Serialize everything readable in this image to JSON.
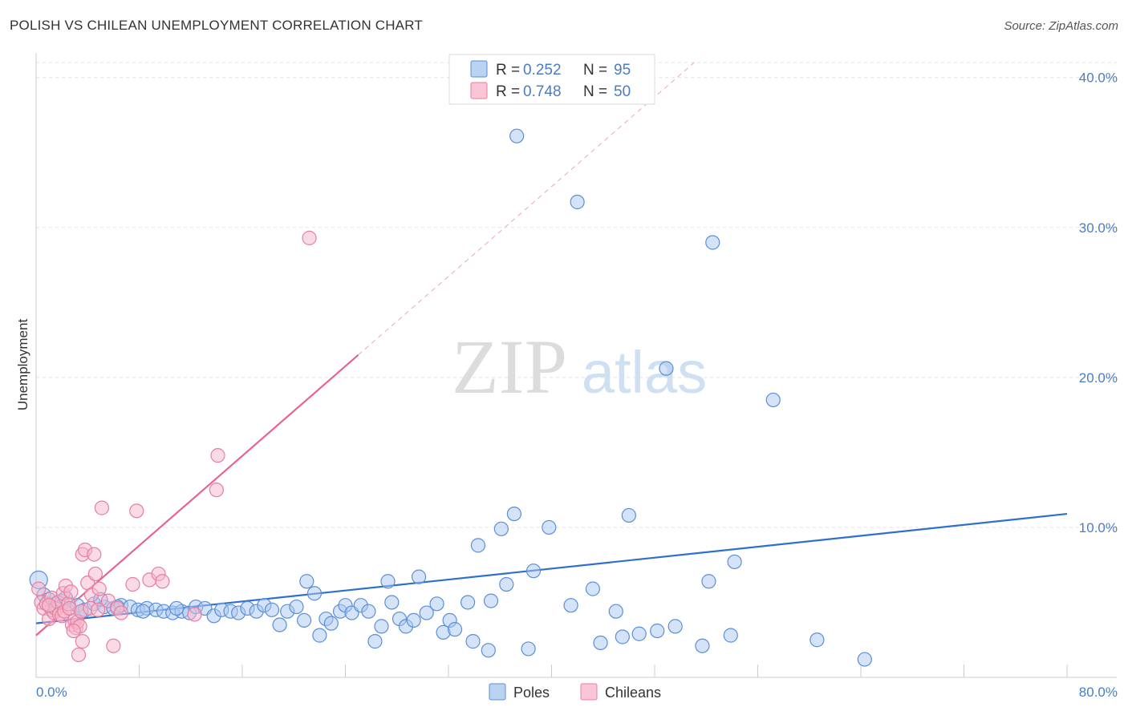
{
  "header": {
    "title": "POLISH VS CHILEAN UNEMPLOYMENT CORRELATION CHART",
    "source": "Source: ZipAtlas.com"
  },
  "watermark": {
    "zip": "ZIP",
    "atlas": "atlas"
  },
  "colors": {
    "poles_fill": "#a9c8f0",
    "poles_stroke": "#5b8fd6",
    "poles_line": "#2f6fce",
    "chileans_fill": "#f6b8cb",
    "chileans_stroke": "#e87ea0",
    "chileans_line": "#e8638f",
    "axis_label": "#4a7cc6",
    "grid": "#e3e3e3"
  },
  "chart_data": {
    "type": "scatter",
    "title": "POLISH VS CHILEAN UNEMPLOYMENT CORRELATION CHART",
    "xlabel": "",
    "ylabel": "Unemployment",
    "xlim": [
      0,
      80
    ],
    "ylim": [
      0,
      41
    ],
    "x_tick_labels": [
      "0.0%",
      "80.0%"
    ],
    "y_ticks": [
      10,
      20,
      30,
      40
    ],
    "y_tick_labels": [
      "10.0%",
      "20.0%",
      "30.0%",
      "40.0%"
    ],
    "legend": {
      "r_label": "R =",
      "n_label": "N =",
      "entries": [
        {
          "name": "Poles",
          "r": "0.252",
          "n": "95"
        },
        {
          "name": "Chileans",
          "r": "0.748",
          "n": "50"
        }
      ]
    },
    "series": [
      {
        "name": "Poles",
        "color": "#a9c8f0",
        "trend": {
          "x": [
            0,
            80
          ],
          "y": [
            3.6,
            10.9
          ]
        },
        "points": [
          [
            0.2,
            6.5
          ],
          [
            0.6,
            5.5
          ],
          [
            1.0,
            5.2
          ],
          [
            1.5,
            4.9
          ],
          [
            2.0,
            5.1
          ],
          [
            2.6,
            4.6
          ],
          [
            3.2,
            4.8
          ],
          [
            3.8,
            4.5
          ],
          [
            4.5,
            4.9
          ],
          [
            5.3,
            4.7
          ],
          [
            6.0,
            4.6
          ],
          [
            6.6,
            4.8
          ],
          [
            7.3,
            4.7
          ],
          [
            7.9,
            4.5
          ],
          [
            8.6,
            4.6
          ],
          [
            9.3,
            4.5
          ],
          [
            9.9,
            4.4
          ],
          [
            10.6,
            4.3
          ],
          [
            11.3,
            4.4
          ],
          [
            11.9,
            4.3
          ],
          [
            12.4,
            4.7
          ],
          [
            13.1,
            4.6
          ],
          [
            13.8,
            4.1
          ],
          [
            14.4,
            4.5
          ],
          [
            15.1,
            4.4
          ],
          [
            15.7,
            4.3
          ],
          [
            16.4,
            4.6
          ],
          [
            17.1,
            4.4
          ],
          [
            17.7,
            4.8
          ],
          [
            18.3,
            4.5
          ],
          [
            18.9,
            3.5
          ],
          [
            19.5,
            4.4
          ],
          [
            20.2,
            4.7
          ],
          [
            20.8,
            3.8
          ],
          [
            21.0,
            6.4
          ],
          [
            21.6,
            5.6
          ],
          [
            22.0,
            2.8
          ],
          [
            22.5,
            3.9
          ],
          [
            22.9,
            3.6
          ],
          [
            23.6,
            4.4
          ],
          [
            24.0,
            4.8
          ],
          [
            24.5,
            4.3
          ],
          [
            25.2,
            4.8
          ],
          [
            25.8,
            4.4
          ],
          [
            26.3,
            2.4
          ],
          [
            26.8,
            3.4
          ],
          [
            27.3,
            6.4
          ],
          [
            27.6,
            5.0
          ],
          [
            28.2,
            3.9
          ],
          [
            28.7,
            3.4
          ],
          [
            29.3,
            3.8
          ],
          [
            29.7,
            6.7
          ],
          [
            30.3,
            4.3
          ],
          [
            31.1,
            4.9
          ],
          [
            31.6,
            3.0
          ],
          [
            32.1,
            3.8
          ],
          [
            32.5,
            3.2
          ],
          [
            33.5,
            5.0
          ],
          [
            33.9,
            2.4
          ],
          [
            34.3,
            8.8
          ],
          [
            35.1,
            1.8
          ],
          [
            35.3,
            5.1
          ],
          [
            36.1,
            9.9
          ],
          [
            36.5,
            6.2
          ],
          [
            37.1,
            10.9
          ],
          [
            37.3,
            36.1
          ],
          [
            38.2,
            1.9
          ],
          [
            38.6,
            7.1
          ],
          [
            39.8,
            10.0
          ],
          [
            41.5,
            4.8
          ],
          [
            42.0,
            31.7
          ],
          [
            43.2,
            5.9
          ],
          [
            43.8,
            2.3
          ],
          [
            45.0,
            4.4
          ],
          [
            45.5,
            2.7
          ],
          [
            46.0,
            10.8
          ],
          [
            46.8,
            2.9
          ],
          [
            48.2,
            3.1
          ],
          [
            48.9,
            20.6
          ],
          [
            49.6,
            3.4
          ],
          [
            51.7,
            2.1
          ],
          [
            52.2,
            6.4
          ],
          [
            52.5,
            29.0
          ],
          [
            53.9,
            2.8
          ],
          [
            54.2,
            7.7
          ],
          [
            57.2,
            18.5
          ],
          [
            60.6,
            2.5
          ],
          [
            64.3,
            1.2
          ],
          [
            1.2,
            4.5
          ],
          [
            2.3,
            5.3
          ],
          [
            3.5,
            4.4
          ],
          [
            5.0,
            5.2
          ],
          [
            6.3,
            4.7
          ],
          [
            8.3,
            4.4
          ],
          [
            10.9,
            4.6
          ]
        ]
      },
      {
        "name": "Chileans",
        "color": "#f6b8cb",
        "trend": {
          "x": [
            0,
            25
          ],
          "y": [
            2.8,
            21.5
          ]
        },
        "points": [
          [
            0.2,
            5.9
          ],
          [
            0.4,
            5.0
          ],
          [
            0.6,
            4.6
          ],
          [
            0.8,
            4.9
          ],
          [
            1.0,
            3.9
          ],
          [
            1.2,
            5.3
          ],
          [
            1.4,
            4.3
          ],
          [
            1.5,
            4.6
          ],
          [
            1.7,
            5.0
          ],
          [
            1.8,
            4.2
          ],
          [
            2.0,
            4.1
          ],
          [
            2.1,
            5.6
          ],
          [
            2.2,
            4.4
          ],
          [
            2.3,
            6.1
          ],
          [
            2.5,
            4.9
          ],
          [
            2.6,
            4.6
          ],
          [
            2.7,
            5.7
          ],
          [
            2.8,
            3.5
          ],
          [
            3.0,
            3.8
          ],
          [
            3.1,
            3.3
          ],
          [
            3.2,
            3.7
          ],
          [
            3.3,
            1.5
          ],
          [
            3.4,
            3.4
          ],
          [
            3.5,
            4.4
          ],
          [
            3.6,
            2.4
          ],
          [
            3.6,
            8.2
          ],
          [
            3.8,
            8.5
          ],
          [
            4.0,
            6.3
          ],
          [
            4.2,
            4.6
          ],
          [
            4.3,
            5.5
          ],
          [
            4.5,
            8.2
          ],
          [
            4.6,
            6.9
          ],
          [
            4.8,
            4.5
          ],
          [
            5.1,
            11.3
          ],
          [
            5.6,
            5.1
          ],
          [
            6.0,
            2.1
          ],
          [
            6.3,
            4.6
          ],
          [
            6.6,
            4.3
          ],
          [
            7.5,
            6.2
          ],
          [
            7.8,
            11.1
          ],
          [
            8.8,
            6.5
          ],
          [
            9.5,
            6.9
          ],
          [
            9.8,
            6.4
          ],
          [
            12.3,
            4.2
          ],
          [
            14.0,
            12.5
          ],
          [
            14.1,
            14.8
          ],
          [
            21.2,
            29.3
          ],
          [
            1.0,
            4.8
          ],
          [
            2.9,
            3.1
          ],
          [
            4.9,
            5.9
          ]
        ]
      }
    ]
  },
  "bottom_legend": {
    "items": [
      "Poles",
      "Chileans"
    ]
  }
}
